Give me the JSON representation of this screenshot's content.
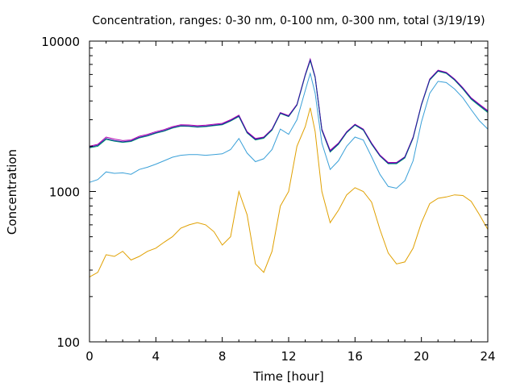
{
  "chart_data": {
    "type": "line",
    "title": "Concentration, ranges: 0-30 nm, 0-100 nm, 0-300 nm, total (3/19/19)",
    "xlabel": "Time [hour]",
    "ylabel": "Concentration",
    "xlim": [
      0,
      24
    ],
    "ylim": [
      100,
      10000
    ],
    "yscale": "log",
    "xticks": [
      "0",
      "4",
      "8",
      "12",
      "16",
      "20",
      "24"
    ],
    "yticks": [
      "100",
      "1000",
      "10000"
    ],
    "grid": false,
    "legend": "none",
    "x": [
      0,
      0.5,
      1,
      1.5,
      2,
      2.5,
      3,
      3.5,
      4,
      4.5,
      5,
      5.5,
      6,
      6.5,
      7,
      7.5,
      8,
      8.5,
      9,
      9.5,
      10,
      10.5,
      11,
      11.5,
      12,
      12.5,
      13,
      13.3,
      13.6,
      14,
      14.5,
      15,
      15.5,
      16,
      16.5,
      17,
      17.5,
      18,
      18.5,
      19,
      19.5,
      20,
      20.5,
      21,
      21.5,
      22,
      22.5,
      23,
      23.5,
      24
    ],
    "series": [
      {
        "color": "#b000b0",
        "values": [
          2000,
          2060,
          2300,
          2230,
          2180,
          2200,
          2330,
          2400,
          2500,
          2580,
          2700,
          2780,
          2770,
          2740,
          2760,
          2800,
          2840,
          3000,
          3220,
          2500,
          2250,
          2300,
          2600,
          3350,
          3200,
          3800,
          6000,
          7600,
          5800,
          2600,
          1880,
          2100,
          2500,
          2800,
          2600,
          2100,
          1750,
          1560,
          1560,
          1700,
          2300,
          3800,
          5600,
          6400,
          6200,
          5600,
          4900,
          4200,
          3800,
          3450
        ]
      },
      {
        "color": "#00a070",
        "values": [
          1950,
          2000,
          2220,
          2160,
          2120,
          2150,
          2270,
          2340,
          2440,
          2520,
          2640,
          2720,
          2710,
          2680,
          2700,
          2740,
          2780,
          2940,
          3150,
          2450,
          2200,
          2260,
          2560,
          3300,
          3150,
          3750,
          5900,
          7400,
          5700,
          2550,
          1830,
          2060,
          2460,
          2760,
          2560,
          2060,
          1720,
          1530,
          1530,
          1670,
          2260,
          3750,
          5500,
          6300,
          6100,
          5500,
          4800,
          4100,
          3700,
          3350
        ]
      },
      {
        "color": "#2020a0",
        "values": [
          1970,
          2030,
          2250,
          2180,
          2140,
          2170,
          2290,
          2360,
          2460,
          2540,
          2660,
          2740,
          2730,
          2700,
          2720,
          2760,
          2800,
          2960,
          3180,
          2470,
          2220,
          2280,
          2580,
          3320,
          3170,
          3770,
          5950,
          7500,
          5750,
          2570,
          1850,
          2080,
          2480,
          2780,
          2580,
          2080,
          1730,
          1540,
          1545,
          1690,
          2280,
          3780,
          5550,
          6350,
          6150,
          5550,
          4850,
          4150,
          3750,
          3400
        ]
      },
      {
        "color": "#3aa0d8",
        "values": [
          1150,
          1200,
          1350,
          1320,
          1330,
          1300,
          1400,
          1450,
          1520,
          1600,
          1690,
          1740,
          1760,
          1760,
          1740,
          1760,
          1780,
          1900,
          2250,
          1800,
          1580,
          1650,
          1900,
          2600,
          2400,
          3000,
          4700,
          6100,
          4500,
          2100,
          1400,
          1600,
          2000,
          2300,
          2200,
          1700,
          1300,
          1080,
          1050,
          1180,
          1600,
          2900,
          4500,
          5400,
          5300,
          4800,
          4200,
          3500,
          2950,
          2600
        ]
      },
      {
        "color": "#e0a000",
        "values": [
          270,
          290,
          380,
          370,
          400,
          350,
          370,
          400,
          420,
          460,
          500,
          570,
          600,
          620,
          600,
          540,
          440,
          500,
          1000,
          700,
          330,
          290,
          400,
          800,
          1000,
          2000,
          2700,
          3600,
          2500,
          1000,
          620,
          750,
          950,
          1060,
          1000,
          850,
          560,
          390,
          330,
          340,
          420,
          620,
          830,
          900,
          920,
          950,
          940,
          860,
          700,
          560
        ]
      }
    ]
  }
}
